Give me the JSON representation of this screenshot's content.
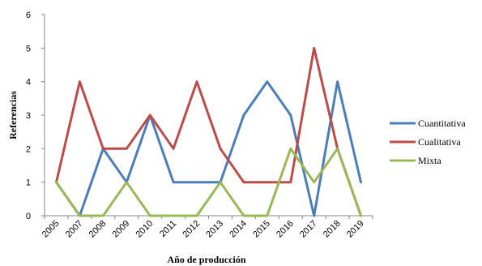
{
  "chart_data": {
    "type": "line",
    "categories": [
      "2005",
      "2007",
      "2008",
      "2009",
      "2010",
      "2011",
      "2012",
      "2013",
      "2014",
      "2015",
      "2016",
      "2017",
      "2018",
      "2019"
    ],
    "series": [
      {
        "name": "Cuantitativa",
        "color": "#4a7ebb",
        "values": [
          1,
          0,
          2,
          1,
          3,
          1,
          1,
          1,
          3,
          4,
          3,
          0,
          4,
          1
        ]
      },
      {
        "name": "Cualitativa",
        "color": "#be4b48",
        "values": [
          1,
          4,
          2,
          2,
          3,
          2,
          4,
          2,
          1,
          1,
          1,
          5,
          2,
          0
        ]
      },
      {
        "name": "Mixta",
        "color": "#98b954",
        "values": [
          1,
          0,
          0,
          1,
          0,
          0,
          0,
          1,
          0,
          0,
          2,
          1,
          2,
          0
        ]
      }
    ],
    "xlabel": "Año de producción",
    "ylabel": "Referencias",
    "ylim": [
      0,
      6
    ],
    "yticks": [
      "0",
      "1",
      "2",
      "3",
      "4",
      "5",
      "6"
    ],
    "grid": false,
    "legend_position": "right"
  }
}
